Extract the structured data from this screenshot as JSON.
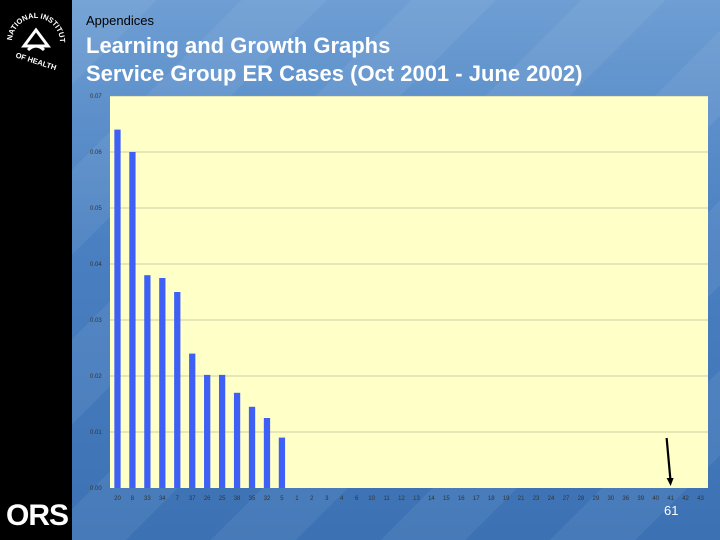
{
  "header": {
    "kicker": "Appendices",
    "title_line1": "Learning and Growth Graphs",
    "title_line2": "Service Group ER Cases (Oct 2001 - June 2002)"
  },
  "logo": {
    "seal_text": "NATIONAL INSTITUTES OF HEALTH",
    "brand": "ORS"
  },
  "page_number": "61",
  "colors": {
    "plot_background": "#ffffc8",
    "bar": "#3f60f4",
    "title": "#ffffff",
    "sidebar": "#000000"
  },
  "chart_data": {
    "type": "bar",
    "categories": [
      "20",
      "8",
      "33",
      "34",
      "7",
      "37",
      "26",
      "25",
      "38",
      "35",
      "32",
      "5",
      "1",
      "2",
      "3",
      "4",
      "6",
      "10",
      "11",
      "12",
      "13",
      "14",
      "15",
      "16",
      "17",
      "18",
      "19",
      "21",
      "23",
      "24",
      "27",
      "28",
      "29",
      "30",
      "36",
      "39",
      "40",
      "41",
      "42",
      "43"
    ],
    "values": [
      0.064,
      0.06,
      0.038,
      0.0375,
      0.035,
      0.024,
      0.0202,
      0.0202,
      0.017,
      0.0145,
      0.0125,
      0.009,
      0,
      0,
      0,
      0,
      0,
      0,
      0,
      0,
      0,
      0,
      0,
      0,
      0,
      0,
      0,
      0,
      0,
      0,
      0,
      0,
      0,
      0,
      0,
      0,
      0,
      0,
      0,
      0
    ],
    "yticks": [
      "0.00",
      "0.01",
      "0.02",
      "0.03",
      "0.04",
      "0.05",
      "0.06",
      "0.07"
    ],
    "ylim": [
      0,
      0.07
    ],
    "grid": true,
    "annotation": "arrow pointing down to category 41"
  }
}
